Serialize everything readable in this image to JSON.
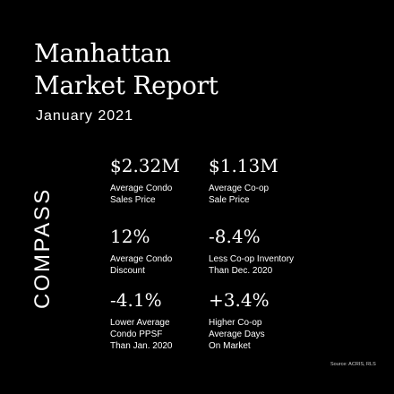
{
  "title": {
    "line1": "Manhattan",
    "line2": "Market Report"
  },
  "subtitle": "January 2021",
  "stats": [
    {
      "value": "$2.32M",
      "label": "Average Condo\nSales Price"
    },
    {
      "value": "$1.13M",
      "label": "Average Co-op\nSale Price"
    },
    {
      "value": "12%",
      "label": "Average Condo\nDiscount"
    },
    {
      "value": "-8.4%",
      "label": "Less Co-op Inventory\nThan Dec. 2020"
    },
    {
      "value": "-4.1%",
      "label": "Lower Average\nCondo PPSF\nThan Jan. 2020"
    },
    {
      "value": "+3.4%",
      "label": "Higher Co-op\nAverage Days\nOn Market"
    }
  ],
  "logo": "COMPASS",
  "source": "Source: ACRIS, RLS",
  "colors": {
    "background": "#000000",
    "text": "#ffffff"
  }
}
